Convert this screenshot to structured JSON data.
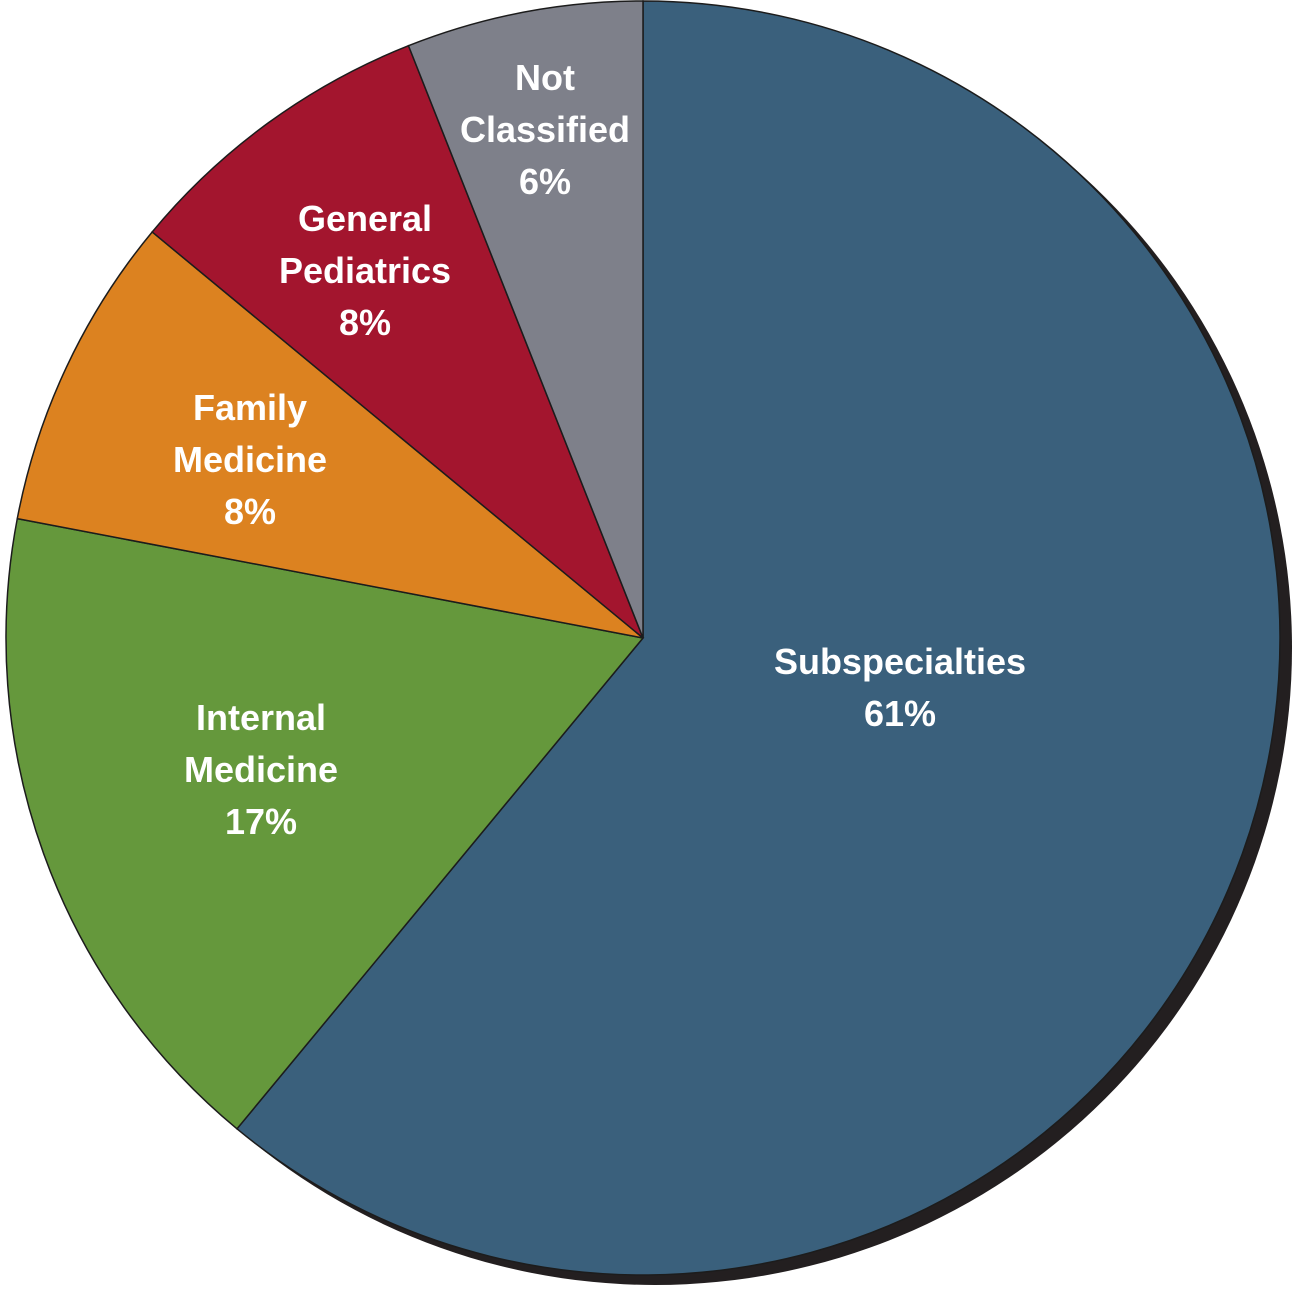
{
  "chart_data": {
    "type": "pie",
    "start_angle_deg": 0,
    "direction": "clockwise",
    "slices": [
      {
        "name": "Subspecialties",
        "label_lines": [
          "Subspecialties"
        ],
        "value_label": "61%",
        "value": 61,
        "color": "#3a607c"
      },
      {
        "name": "Internal Medicine",
        "label_lines": [
          "Internal",
          "Medicine"
        ],
        "value_label": "17%",
        "value": 17,
        "color": "#65983c"
      },
      {
        "name": "Family Medicine",
        "label_lines": [
          "Family",
          "Medicine"
        ],
        "value_label": "8%",
        "value": 8,
        "color": "#dc8220"
      },
      {
        "name": "General Pediatrics",
        "label_lines": [
          "General",
          "Pediatrics"
        ],
        "value_label": "8%",
        "value": 8,
        "color": "#a3152e"
      },
      {
        "name": "Not Classified",
        "label_lines": [
          "Not",
          "Classified"
        ],
        "value_label": "6%",
        "value": 6,
        "color": "#7e808a"
      }
    ],
    "shadow_color": "#231f20"
  }
}
